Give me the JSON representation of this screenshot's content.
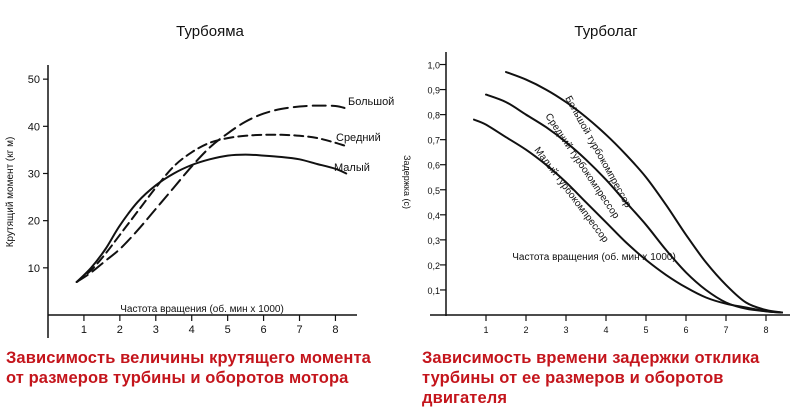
{
  "captions": {
    "left": [
      "Зависимость величины крутящего момента",
      "от размеров турбины и оборотов мотора"
    ],
    "right": [
      "Зависимость времени задержки отклика",
      "турбины от ее размеров и оборотов",
      "двигателя"
    ]
  },
  "colors": {
    "caption": "#c4151c",
    "lines": "#111111"
  },
  "chart_data": [
    {
      "type": "line",
      "title": "Турбояма",
      "xlabel": "Частота вращения (об. мин х 1000)",
      "ylabel": "Крутящий момент (кг м)",
      "xlim": [
        0,
        8.6
      ],
      "ylim": [
        0,
        53
      ],
      "xticks": [
        1,
        2,
        3,
        4,
        5,
        6,
        7,
        8
      ],
      "yticks": [
        10,
        20,
        30,
        40,
        50
      ],
      "xtick_labels": [
        "1",
        "2",
        "3",
        "4",
        "5",
        "6",
        "7",
        "8"
      ],
      "ytick_labels": [
        "10",
        "20",
        "30",
        "40",
        "50"
      ],
      "series": [
        {
          "name": "Малый",
          "style": "solid",
          "x": [
            0.8,
            1.2,
            1.6,
            2.0,
            2.5,
            3.0,
            3.5,
            4.0,
            4.5,
            5.0,
            5.5,
            6.0,
            6.5,
            7.0,
            7.5,
            8.0,
            8.3
          ],
          "y": [
            7,
            10,
            14,
            19,
            24,
            27.5,
            30,
            31.8,
            33,
            33.8,
            34,
            33.8,
            33.5,
            33,
            32,
            31,
            30
          ]
        },
        {
          "name": "Средний",
          "style": "dashed",
          "x": [
            0.8,
            1.2,
            1.6,
            2.0,
            2.5,
            3.0,
            3.5,
            4.0,
            4.5,
            5.0,
            5.5,
            6.0,
            6.5,
            7.0,
            7.5,
            8.0,
            8.3
          ],
          "y": [
            7,
            9.5,
            13,
            17,
            22,
            27,
            31.5,
            34.5,
            36.5,
            37.5,
            38,
            38.2,
            38.2,
            38,
            37.5,
            36.5,
            35.8
          ]
        },
        {
          "name": "Большой",
          "style": "dashed",
          "x": [
            0.8,
            1.2,
            1.6,
            2.0,
            2.5,
            3.0,
            3.5,
            4.0,
            4.5,
            5.0,
            5.5,
            6.0,
            6.5,
            7.0,
            7.5,
            8.0,
            8.3
          ],
          "y": [
            7,
            9,
            11.5,
            14,
            18,
            22.5,
            27,
            31.5,
            35.5,
            38.5,
            41,
            42.7,
            43.7,
            44.2,
            44.4,
            44.3,
            43.8
          ]
        }
      ]
    },
    {
      "type": "line",
      "title": "Турболаг",
      "xlabel": "Частота вращения (об. мин х 1000)",
      "ylabel": "Задержка (с)",
      "xlim": [
        0,
        8.6
      ],
      "ylim": [
        0,
        1.05
      ],
      "xticks": [
        1,
        2,
        3,
        4,
        5,
        6,
        7,
        8
      ],
      "yticks": [
        0.1,
        0.2,
        0.3,
        0.4,
        0.5,
        0.6,
        0.7,
        0.8,
        0.9,
        1.0
      ],
      "xtick_labels": [
        "1",
        "2",
        "3",
        "4",
        "5",
        "6",
        "7",
        "8"
      ],
      "ytick_labels": [
        "0,1",
        "0,2",
        "0,3",
        "0,4",
        "0,5",
        "0,6",
        "0,7",
        "0,8",
        "0,9",
        "1,0"
      ],
      "series": [
        {
          "name": "Большой турбокомпрессор",
          "style": "solid",
          "x": [
            1.5,
            2.0,
            2.5,
            3.0,
            3.5,
            4.0,
            4.5,
            5.0,
            5.5,
            6.0,
            6.5,
            7.0,
            7.5,
            8.0,
            8.4
          ],
          "y": [
            0.97,
            0.94,
            0.9,
            0.85,
            0.79,
            0.72,
            0.64,
            0.55,
            0.44,
            0.32,
            0.21,
            0.12,
            0.05,
            0.02,
            0.01
          ]
        },
        {
          "name": "Средний турбокомпрессор",
          "style": "solid",
          "x": [
            1.0,
            1.5,
            2.0,
            2.5,
            3.0,
            3.5,
            4.0,
            4.5,
            5.0,
            5.5,
            6.0,
            6.5,
            7.0,
            7.5,
            8.0,
            8.4
          ],
          "y": [
            0.88,
            0.85,
            0.8,
            0.75,
            0.69,
            0.62,
            0.54,
            0.45,
            0.36,
            0.26,
            0.17,
            0.1,
            0.05,
            0.025,
            0.015,
            0.01
          ]
        },
        {
          "name": "Малый турбокомпрессор",
          "style": "solid",
          "x": [
            0.7,
            1.0,
            1.5,
            2.0,
            2.5,
            3.0,
            3.5,
            4.0,
            4.5,
            5.0,
            5.5,
            6.0,
            6.5,
            7.0,
            7.5,
            8.0,
            8.4
          ],
          "y": [
            0.78,
            0.76,
            0.71,
            0.66,
            0.6,
            0.53,
            0.45,
            0.37,
            0.29,
            0.22,
            0.16,
            0.11,
            0.07,
            0.045,
            0.03,
            0.015,
            0.01
          ]
        }
      ]
    }
  ]
}
